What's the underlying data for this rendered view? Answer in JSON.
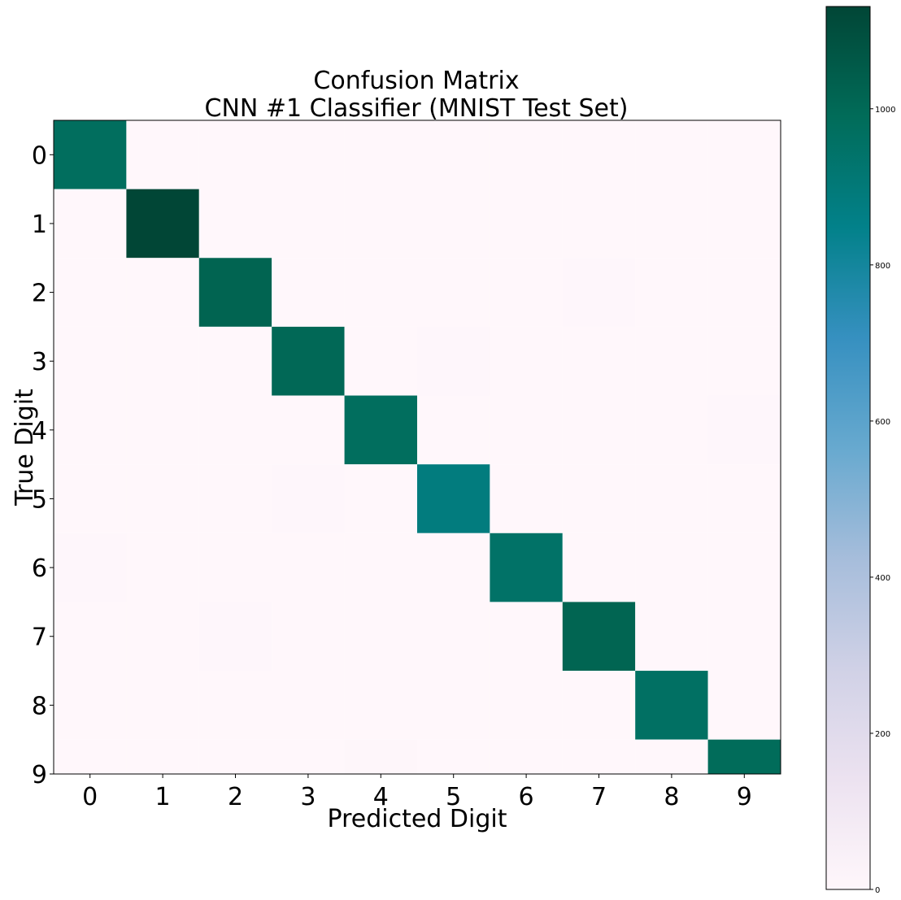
{
  "chart_data": {
    "type": "heatmap",
    "title": "Confusion Matrix",
    "subtitle": "CNN #1 Classifier (MNIST Test Set)",
    "xlabel": "Predicted Digit",
    "ylabel": "True Digit",
    "x_categories": [
      "0",
      "1",
      "2",
      "3",
      "4",
      "5",
      "6",
      "7",
      "8",
      "9"
    ],
    "y_categories": [
      "0",
      "1",
      "2",
      "3",
      "4",
      "5",
      "6",
      "7",
      "8",
      "9"
    ],
    "matrix": [
      [
        975,
        0,
        1,
        0,
        0,
        1,
        1,
        1,
        1,
        0
      ],
      [
        0,
        1131,
        1,
        1,
        0,
        0,
        1,
        1,
        0,
        0
      ],
      [
        2,
        1,
        1020,
        1,
        0,
        0,
        0,
        6,
        2,
        0
      ],
      [
        0,
        0,
        1,
        1003,
        0,
        4,
        0,
        1,
        1,
        0
      ],
      [
        0,
        0,
        1,
        0,
        976,
        0,
        1,
        0,
        0,
        4
      ],
      [
        1,
        0,
        0,
        5,
        0,
        883,
        1,
        0,
        1,
        1
      ],
      [
        4,
        2,
        0,
        0,
        1,
        1,
        949,
        0,
        1,
        0
      ],
      [
        1,
        2,
        5,
        1,
        0,
        0,
        0,
        1016,
        1,
        2
      ],
      [
        3,
        1,
        1,
        1,
        1,
        2,
        1,
        1,
        960,
        3
      ],
      [
        1,
        2,
        0,
        1,
        10,
        3,
        0,
        3,
        1,
        988
      ]
    ],
    "colormap": "PuBuGn",
    "color_range": [
      0,
      1131
    ],
    "colorbar_ticks": [
      0,
      200,
      400,
      600,
      800,
      1000
    ],
    "colors": {
      "low": "#fff7fb",
      "high": "#014636"
    }
  }
}
